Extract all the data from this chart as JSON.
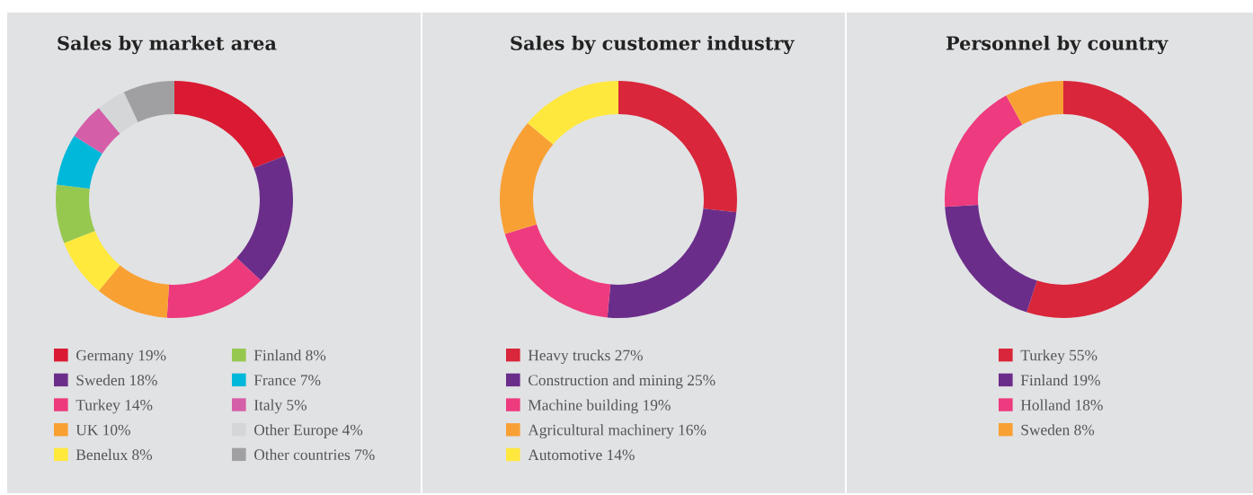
{
  "chart_data": [
    {
      "type": "donut",
      "title": "Sales by market area",
      "legend": "bottom",
      "categories": [
        "Germany",
        "Sweden",
        "Turkey",
        "UK",
        "Benelux",
        "Finland",
        "France",
        "Italy",
        "Other Europe",
        "Other countries"
      ],
      "values": [
        19,
        18,
        14,
        10,
        8,
        8,
        7,
        5,
        4,
        7
      ],
      "value_labels": [
        "19%",
        "18%",
        "14%",
        "10%",
        "8%",
        "8%",
        "7%",
        "5%",
        "4%",
        "7%"
      ],
      "colors": [
        "#d91a32",
        "#6b2d8a",
        "#ec3a7c",
        "#f9a032",
        "#ffe93c",
        "#96c850",
        "#00b8d9",
        "#d55ea8",
        "#d5d6d8",
        "#a0a0a2"
      ]
    },
    {
      "type": "donut",
      "title": "Sales by customer industry",
      "legend": "bottom",
      "categories": [
        "Heavy trucks",
        "Construction and mining",
        "Machine building",
        "Agricultural machinery",
        "Automotive"
      ],
      "values": [
        27,
        25,
        19,
        16,
        14
      ],
      "value_labels": [
        "27%",
        "25%",
        "19%",
        "16%",
        "14%"
      ],
      "colors": [
        "#d9263a",
        "#6b2d8a",
        "#ee3a7e",
        "#f9a035",
        "#ffe83e"
      ]
    },
    {
      "type": "donut",
      "title": "Personnel by country",
      "legend": "bottom",
      "categories": [
        "Turkey",
        "Finland",
        "Holland",
        "Sweden"
      ],
      "values": [
        55,
        19,
        18,
        8
      ],
      "value_labels": [
        "55%",
        "19%",
        "18%",
        "8%"
      ],
      "colors": [
        "#d9263a",
        "#6b2d8a",
        "#ee3a7e",
        "#f9a035"
      ]
    }
  ]
}
